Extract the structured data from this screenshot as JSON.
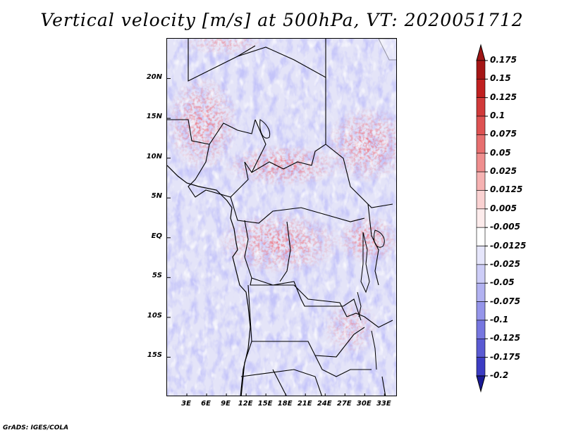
{
  "title": "Vertical velocity [m/s] at 500hPa, VT: 2020051712",
  "footer": "GrADS: IGES/COLA",
  "map": {
    "lon_range": [
      0,
      35
    ],
    "lat_range": [
      -20,
      25
    ],
    "lat_ticks": [
      {
        "label": "20N",
        "lat": 20
      },
      {
        "label": "15N",
        "lat": 15
      },
      {
        "label": "10N",
        "lat": 10
      },
      {
        "label": "5N",
        "lat": 5
      },
      {
        "label": "EQ",
        "lat": 0
      },
      {
        "label": "5S",
        "lat": -5
      },
      {
        "label": "10S",
        "lat": -10
      },
      {
        "label": "15S",
        "lat": -15
      }
    ],
    "lon_ticks": [
      {
        "label": "3E",
        "lon": 3
      },
      {
        "label": "6E",
        "lon": 6
      },
      {
        "label": "9E",
        "lon": 9
      },
      {
        "label": "12E",
        "lon": 12
      },
      {
        "label": "15E",
        "lon": 15
      },
      {
        "label": "18E",
        "lon": 18
      },
      {
        "label": "21E",
        "lon": 21
      },
      {
        "label": "24E",
        "lon": 24
      },
      {
        "label": "27E",
        "lon": 27
      },
      {
        "label": "30E",
        "lon": 30
      },
      {
        "label": "33E",
        "lon": 33
      }
    ]
  },
  "colorbar": {
    "levels": [
      {
        "label": "0.175",
        "color": "#a51616"
      },
      {
        "label": "0.15",
        "color": "#c02020"
      },
      {
        "label": "0.125",
        "color": "#d13a3a"
      },
      {
        "label": "0.1",
        "color": "#de5252"
      },
      {
        "label": "0.075",
        "color": "#e76f6f"
      },
      {
        "label": "0.05",
        "color": "#ef8e8e"
      },
      {
        "label": "0.025",
        "color": "#f6b2b2"
      },
      {
        "label": "0.0125",
        "color": "#fad2d2"
      },
      {
        "label": "0.005",
        "color": "#fdecec"
      },
      {
        "label": "-0.005",
        "color": "#ffffff"
      },
      {
        "label": "-0.0125",
        "color": "#e6e6fb"
      },
      {
        "label": "-0.025",
        "color": "#cdcdf7"
      },
      {
        "label": "-0.05",
        "color": "#b2b2f1"
      },
      {
        "label": "-0.075",
        "color": "#9595ea"
      },
      {
        "label": "-0.1",
        "color": "#7777e0"
      },
      {
        "label": "-0.125",
        "color": "#5a5ad3"
      },
      {
        "label": "-0.175",
        "color": "#3c3cc3"
      },
      {
        "label": "-0.2",
        "color": "#2020a8"
      }
    ],
    "top_color": "#9e1515",
    "bottom_color": "#1a1a96"
  }
}
